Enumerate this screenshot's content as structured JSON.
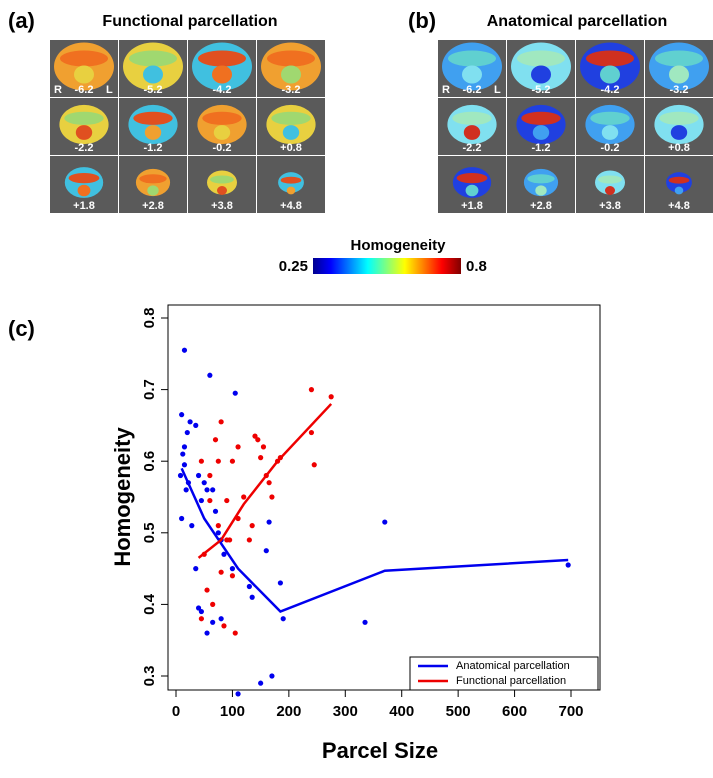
{
  "panels": [
    {
      "label": "(a)",
      "title": "Functional parcellation",
      "side_labels": [
        "R",
        "L"
      ],
      "slices": [
        "-6.2",
        "-5.2",
        "-4.2",
        "-3.2",
        "-2.2",
        "-1.2",
        "-0.2",
        "+0.8",
        "+1.8",
        "+2.8",
        "+3.8",
        "+4.8"
      ]
    },
    {
      "label": "(b)",
      "title": "Anatomical parcellation",
      "side_labels": [
        "R",
        "L"
      ],
      "slices": [
        "-6.2",
        "-5.2",
        "-4.2",
        "-3.2",
        "-2.2",
        "-1.2",
        "-0.2",
        "+0.8",
        "+1.8",
        "+2.8",
        "+3.8",
        "+4.8"
      ]
    }
  ],
  "colorbar": {
    "title": "Homogeneity",
    "min": 0.25,
    "max": 0.8
  },
  "chart_data": {
    "type": "scatter",
    "label": "(c)",
    "x_label": "Parcel Size",
    "y_label": "Homogeneity",
    "xlim": [
      0,
      700
    ],
    "ylim": [
      0.3,
      0.8
    ],
    "xticks": [
      0,
      100,
      200,
      300,
      400,
      500,
      600,
      700
    ],
    "yticks": [
      0.3,
      0.4,
      0.5,
      0.6,
      0.7,
      0.8
    ],
    "legend_position": "bottom-right",
    "series": [
      {
        "name": "Anatomical parcellation",
        "color": "#0000ee",
        "x": [
          15,
          10,
          12,
          15,
          20,
          8,
          25,
          15,
          18,
          22,
          10,
          28,
          35,
          40,
          45,
          50,
          55,
          60,
          65,
          70,
          75,
          80,
          35,
          40,
          45,
          55,
          65,
          80,
          85,
          100,
          105,
          110,
          130,
          135,
          150,
          160,
          165,
          170,
          185,
          190,
          335,
          370,
          695
        ],
        "values": [
          0.755,
          0.665,
          0.61,
          0.62,
          0.64,
          0.58,
          0.655,
          0.595,
          0.56,
          0.57,
          0.52,
          0.51,
          0.65,
          0.58,
          0.545,
          0.57,
          0.56,
          0.72,
          0.56,
          0.53,
          0.5,
          0.49,
          0.45,
          0.395,
          0.39,
          0.36,
          0.375,
          0.38,
          0.47,
          0.45,
          0.695,
          0.275,
          0.425,
          0.41,
          0.29,
          0.475,
          0.515,
          0.3,
          0.43,
          0.38,
          0.375,
          0.515,
          0.455
        ],
        "line": {
          "x": [
            10,
            50,
            110,
            185,
            370,
            695
          ],
          "values": [
            0.59,
            0.52,
            0.45,
            0.39,
            0.447,
            0.462
          ]
        }
      },
      {
        "name": "Functional parcellation",
        "color": "#ee0000",
        "x": [
          45,
          50,
          45,
          55,
          60,
          65,
          70,
          75,
          75,
          80,
          80,
          85,
          90,
          95,
          100,
          100,
          105,
          110,
          110,
          120,
          130,
          135,
          140,
          145,
          150,
          155,
          160,
          165,
          170,
          180,
          185,
          240,
          240,
          245,
          275,
          60,
          90
        ],
        "values": [
          0.6,
          0.47,
          0.38,
          0.42,
          0.58,
          0.4,
          0.63,
          0.6,
          0.51,
          0.655,
          0.445,
          0.37,
          0.545,
          0.49,
          0.6,
          0.44,
          0.36,
          0.62,
          0.52,
          0.55,
          0.49,
          0.51,
          0.635,
          0.63,
          0.605,
          0.62,
          0.58,
          0.57,
          0.55,
          0.6,
          0.605,
          0.64,
          0.7,
          0.595,
          0.69,
          0.545,
          0.49
        ],
        "line": {
          "x": [
            40,
            80,
            120,
            180,
            275
          ],
          "values": [
            0.465,
            0.49,
            0.54,
            0.6,
            0.68
          ]
        }
      }
    ]
  }
}
